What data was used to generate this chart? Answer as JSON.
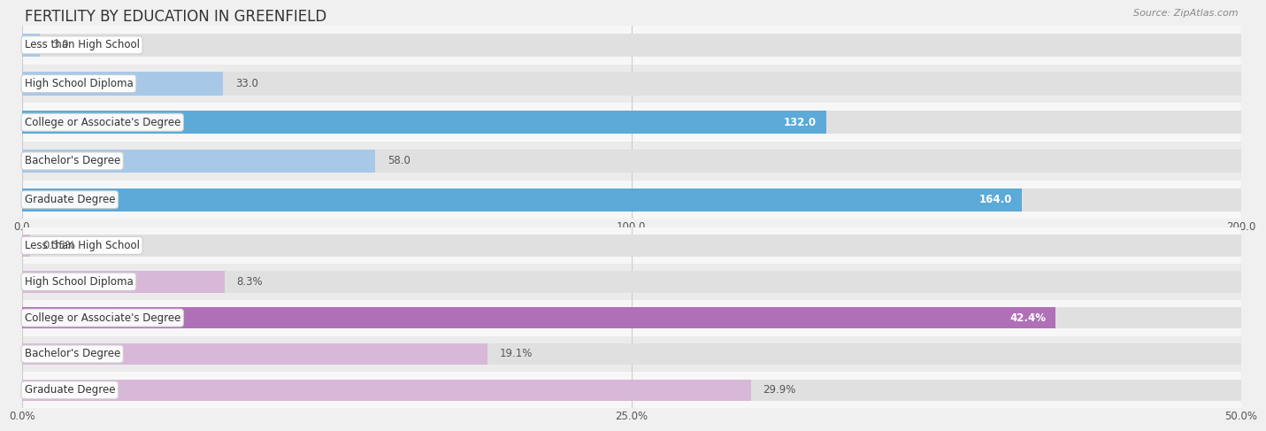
{
  "title": "FERTILITY BY EDUCATION IN GREENFIELD",
  "source": "Source: ZipAtlas.com",
  "chart1": {
    "categories": [
      "Less than High School",
      "High School Diploma",
      "College or Associate's Degree",
      "Bachelor's Degree",
      "Graduate Degree"
    ],
    "values": [
      3.0,
      33.0,
      132.0,
      58.0,
      164.0
    ],
    "xlim": [
      0,
      200
    ],
    "xticks": [
      0.0,
      100.0,
      200.0
    ],
    "xtick_labels": [
      "0.0",
      "100.0",
      "200.0"
    ],
    "bar_colors": [
      "#a8c8e8",
      "#a8c8e8",
      "#5baad8",
      "#a8c8e8",
      "#5baad8"
    ],
    "label_inside": [
      false,
      false,
      true,
      false,
      true
    ],
    "label_color_inside": "#ffffff",
    "label_color_outside": "#555555"
  },
  "chart2": {
    "categories": [
      "Less than High School",
      "High School Diploma",
      "College or Associate's Degree",
      "Bachelor's Degree",
      "Graduate Degree"
    ],
    "values": [
      0.35,
      8.3,
      42.4,
      19.1,
      29.9
    ],
    "xlim": [
      0,
      50
    ],
    "xticks": [
      0.0,
      25.0,
      50.0
    ],
    "xtick_labels": [
      "0.0%",
      "25.0%",
      "50.0%"
    ],
    "bar_colors": [
      "#d8b8d8",
      "#d8b8d8",
      "#b070b8",
      "#d8b8d8",
      "#d8b8d8"
    ],
    "label_inside": [
      false,
      false,
      true,
      false,
      false
    ],
    "label_color_inside": "#ffffff",
    "label_color_outside": "#555555",
    "value_labels": [
      "0.35%",
      "8.3%",
      "42.4%",
      "19.1%",
      "29.9%"
    ]
  },
  "bg_color": "#f0f0f0",
  "row_bg_even": "#f7f7f7",
  "row_bg_odd": "#ebebeb",
  "bar_bg_color": "#e0e0e0",
  "bar_height": 0.6,
  "title_fontsize": 12,
  "label_fontsize": 8.5,
  "tick_fontsize": 8.5,
  "source_fontsize": 8
}
